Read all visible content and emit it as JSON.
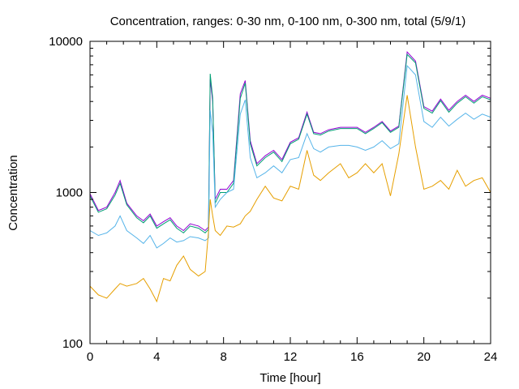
{
  "chart_data": {
    "type": "line",
    "title": "Concentration, ranges: 0-30 nm, 0-100 nm, 0-300 nm, total (5/9/1)",
    "xlabel": "Time [hour]",
    "ylabel": "Concentration",
    "xlim": [
      0,
      24
    ],
    "ylim": [
      100,
      10000
    ],
    "yscale": "log",
    "grid": false,
    "legend": "none",
    "x_ticks": [
      0,
      4,
      8,
      12,
      16,
      20,
      24
    ],
    "x_tick_labels": [
      "0",
      "4",
      "8",
      "12",
      "16",
      "20",
      "24"
    ],
    "y_ticks": [
      100,
      1000,
      10000
    ],
    "y_tick_labels": [
      "100",
      "1000",
      "10000"
    ],
    "x": [
      0,
      0.5,
      1,
      1.5,
      1.8,
      2.2,
      2.8,
      3.2,
      3.6,
      4,
      4.4,
      4.8,
      5.2,
      5.6,
      6,
      6.5,
      6.9,
      7.1,
      7.2,
      7.35,
      7.5,
      7.8,
      8.2,
      8.6,
      9,
      9.3,
      9.6,
      10,
      10.5,
      11,
      11.5,
      12,
      12.5,
      13,
      13.4,
      13.8,
      14.3,
      15,
      15.5,
      16,
      16.5,
      17,
      17.5,
      18,
      18.5,
      19,
      19.5,
      20,
      20.5,
      21,
      21.5,
      22,
      22.5,
      23,
      23.5,
      24
    ],
    "series": [
      {
        "color": "#9400d3",
        "values": [
          980,
          760,
          800,
          1000,
          1200,
          850,
          700,
          650,
          720,
          600,
          640,
          680,
          600,
          560,
          620,
          600,
          560,
          590,
          5600,
          4000,
          900,
          1050,
          1050,
          1200,
          4500,
          5500,
          2200,
          1550,
          1750,
          1900,
          1650,
          2150,
          2300,
          3400,
          2500,
          2450,
          2600,
          2700,
          2700,
          2700,
          2500,
          2700,
          2950,
          2550,
          2750,
          8500,
          7400,
          3700,
          3450,
          4150,
          3500,
          4000,
          4400,
          4000,
          4400,
          4200
        ]
      },
      {
        "color": "#009e73",
        "values": [
          950,
          740,
          780,
          960,
          1150,
          830,
          680,
          630,
          700,
          580,
          620,
          660,
          580,
          540,
          600,
          580,
          540,
          570,
          6100,
          4200,
          850,
          1000,
          1000,
          1150,
          4200,
          5300,
          2100,
          1500,
          1700,
          1850,
          1600,
          2100,
          2250,
          3300,
          2450,
          2400,
          2550,
          2650,
          2650,
          2650,
          2450,
          2650,
          2900,
          2500,
          2700,
          8200,
          7200,
          3600,
          3350,
          4050,
          3400,
          3900,
          4300,
          3900,
          4300,
          4100
        ]
      },
      {
        "color": "#56b4e9",
        "values": [
          560,
          520,
          540,
          600,
          700,
          560,
          500,
          460,
          520,
          430,
          460,
          500,
          470,
          480,
          510,
          500,
          480,
          500,
          3500,
          2500,
          800,
          900,
          1000,
          1050,
          3300,
          4100,
          1700,
          1250,
          1350,
          1500,
          1350,
          1650,
          1700,
          2450,
          1950,
          1850,
          2000,
          2050,
          2050,
          2000,
          1900,
          2000,
          2200,
          1950,
          2100,
          6900,
          6000,
          2950,
          2700,
          3150,
          2750,
          3050,
          3350,
          3050,
          3300,
          3150
        ]
      },
      {
        "color": "#e69f00",
        "values": [
          240,
          210,
          200,
          230,
          250,
          240,
          250,
          270,
          230,
          190,
          270,
          260,
          330,
          380,
          310,
          280,
          300,
          550,
          900,
          700,
          560,
          520,
          600,
          590,
          620,
          700,
          750,
          900,
          1100,
          920,
          880,
          1100,
          1050,
          1900,
          1300,
          1200,
          1350,
          1550,
          1250,
          1350,
          1550,
          1350,
          1550,
          950,
          1800,
          4400,
          2000,
          1050,
          1100,
          1200,
          1050,
          1400,
          1100,
          1200,
          1250,
          1000
        ]
      }
    ]
  }
}
